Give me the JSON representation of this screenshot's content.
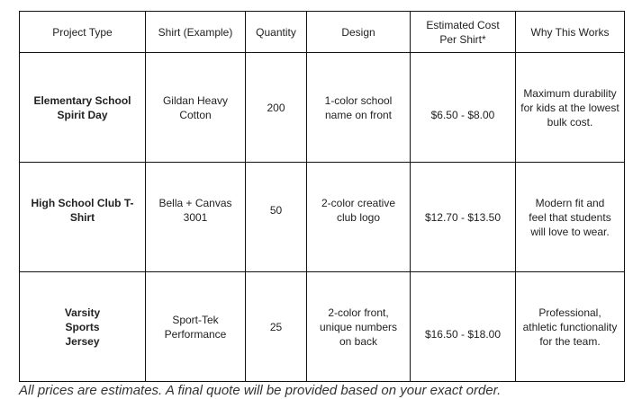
{
  "table": {
    "headers": [
      "Project Type",
      "Shirt (Example)",
      "Quantity",
      "Design",
      "Estimated Cost Per Shirt*",
      "Why This Works"
    ],
    "rows": [
      {
        "project_type": "Elementary School Spirit Day",
        "shirt": "Gildan Heavy Cotton",
        "quantity": "200",
        "design": "1-color school name on front",
        "cost": "$6.50 - $8.00",
        "why": "Maximum durability for kids at the lowest bulk cost."
      },
      {
        "project_type": "High School Club T-Shirt",
        "shirt": "Bella + Canvas 3001",
        "quantity": "50",
        "design": "2-color creative club logo",
        "cost": "$12.70 - $13.50",
        "why": "Modern fit and feel that students will love to wear."
      },
      {
        "project_type": "Varsity Sports Jersey",
        "shirt": "Sport-Tek Performance",
        "quantity": "25",
        "design": "2-color front, unique numbers on back",
        "cost": "$16.50 - $18.00",
        "why": "Professional, athletic functionality for the team."
      }
    ]
  },
  "footnote": "All prices are estimates. A final quote will be provided based on your exact order."
}
